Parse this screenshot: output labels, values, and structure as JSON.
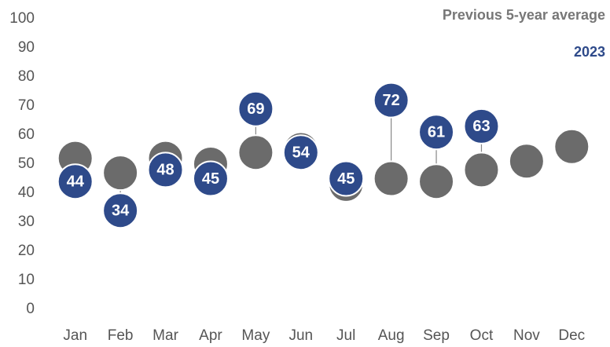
{
  "chart_data": {
    "type": "dot",
    "categories": [
      "Jan",
      "Feb",
      "Mar",
      "Apr",
      "May",
      "Jun",
      "Jul",
      "Aug",
      "Sep",
      "Oct",
      "Nov",
      "Dec"
    ],
    "series": [
      {
        "name": "Previous 5-year average",
        "color": "#6b6b6b",
        "values": [
          52,
          47,
          52,
          50,
          54,
          55,
          43,
          45,
          44,
          48,
          51,
          56
        ]
      },
      {
        "name": "2023",
        "color": "#2e4a8a",
        "values": [
          44,
          34,
          48,
          45,
          69,
          54,
          45,
          72,
          61,
          63,
          null,
          null
        ]
      }
    ],
    "ylim": [
      0,
      100
    ],
    "yticks": [
      0,
      10,
      20,
      30,
      40,
      50,
      60,
      70,
      80,
      90,
      100
    ],
    "grid": false
  }
}
